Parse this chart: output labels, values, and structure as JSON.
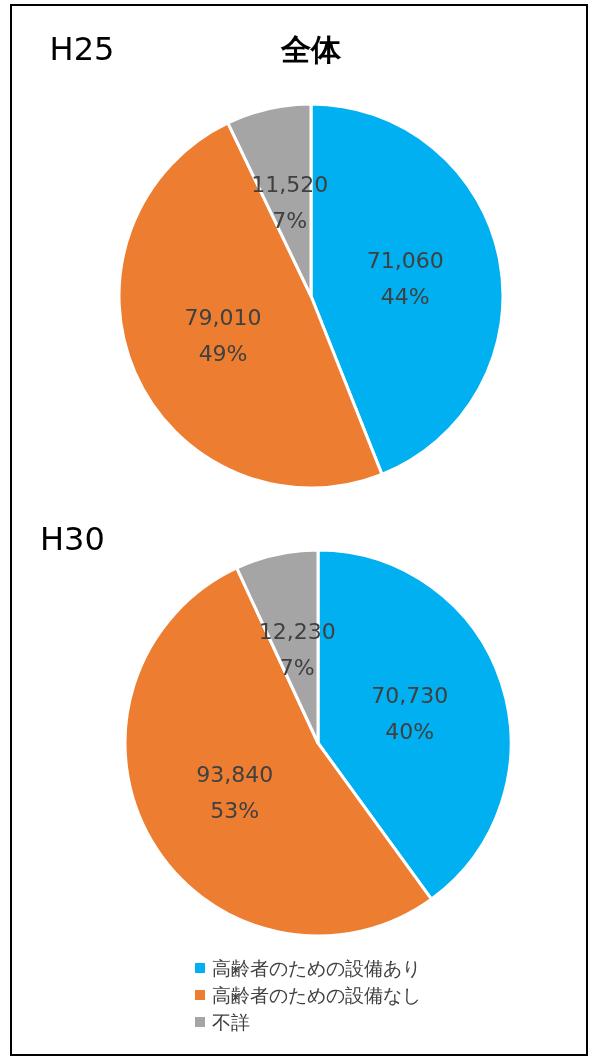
{
  "chart_data": [
    {
      "type": "pie",
      "title": "全体",
      "subtitle": "H25",
      "categories": [
        null,
        null,
        null
      ],
      "values": [
        71060,
        79010,
        11520
      ],
      "colors": [
        "#00b0f0",
        "#ed7d31",
        "#a5a5a5"
      ],
      "value_labels": [
        "71,060\n44%",
        "79,010\n49%",
        "11,520\n7%"
      ]
    },
    {
      "type": "pie",
      "title": "H30",
      "categories": [
        "高齢者のための設備あり",
        "高齢者のための設備なし",
        "不詳"
      ],
      "values": [
        70730,
        93840,
        12230
      ],
      "colors": [
        "#00b0f0",
        "#ed7d31",
        "#a5a5a5"
      ],
      "value_labels": [
        "70,730\n40%",
        "93,840\n53%",
        "12,230\n7%"
      ],
      "legend": "bottom"
    }
  ]
}
